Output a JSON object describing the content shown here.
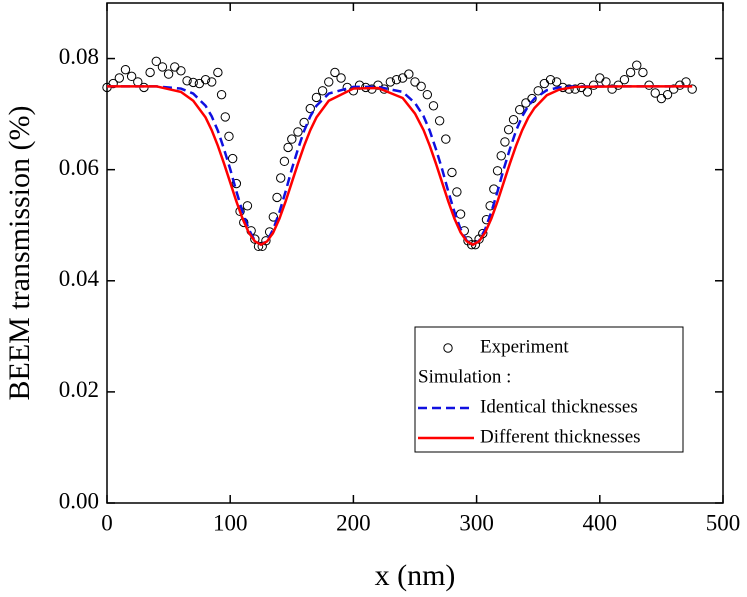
{
  "chart_data": {
    "type": "line",
    "xlabel": "x (nm)",
    "ylabel": "BEEM transmission (%)",
    "xlim": [
      0,
      500
    ],
    "xticks": [
      0,
      100,
      200,
      300,
      400,
      500
    ],
    "ylim": [
      0,
      0.09
    ],
    "yticks": [
      {
        "value": 0,
        "label": "0.00"
      },
      0.02,
      0.04,
      0.06,
      0.08
    ],
    "legend_title": "Simulation :",
    "series": [
      {
        "name": "Experiment",
        "type": "scatter",
        "color": "#000000",
        "x": [
          0,
          5,
          10,
          15,
          20,
          25,
          30,
          35,
          40,
          45,
          50,
          55,
          60,
          65,
          70,
          75,
          80,
          85,
          90,
          93,
          96,
          99,
          102,
          105,
          108,
          111,
          114,
          117,
          120,
          123,
          126,
          129,
          132,
          135,
          138,
          141,
          144,
          147,
          150,
          155,
          160,
          165,
          170,
          175,
          180,
          185,
          190,
          195,
          200,
          205,
          210,
          215,
          220,
          225,
          230,
          235,
          240,
          245,
          250,
          255,
          260,
          265,
          270,
          275,
          280,
          284,
          287,
          290,
          293,
          296,
          299,
          302,
          305,
          308,
          311,
          314,
          317,
          320,
          323,
          326,
          330,
          335,
          340,
          345,
          350,
          355,
          360,
          365,
          370,
          375,
          380,
          385,
          390,
          395,
          400,
          405,
          410,
          415,
          420,
          425,
          430,
          435,
          440,
          445,
          450,
          455,
          460,
          465,
          470,
          475
        ],
        "values": [
          0.0748,
          0.0755,
          0.0765,
          0.078,
          0.0768,
          0.0758,
          0.0748,
          0.0775,
          0.0795,
          0.0785,
          0.0772,
          0.0785,
          0.0778,
          0.076,
          0.0757,
          0.0755,
          0.0762,
          0.0758,
          0.0775,
          0.0735,
          0.0695,
          0.066,
          0.062,
          0.0575,
          0.0525,
          0.0505,
          0.0535,
          0.049,
          0.0475,
          0.0462,
          0.0462,
          0.0472,
          0.0488,
          0.0515,
          0.055,
          0.0585,
          0.0615,
          0.064,
          0.0655,
          0.0668,
          0.0685,
          0.071,
          0.073,
          0.0742,
          0.0758,
          0.0775,
          0.0765,
          0.0748,
          0.0742,
          0.0752,
          0.0748,
          0.0745,
          0.0752,
          0.0745,
          0.0758,
          0.0762,
          0.0765,
          0.0772,
          0.0758,
          0.075,
          0.0735,
          0.0715,
          0.0688,
          0.0655,
          0.0595,
          0.056,
          0.052,
          0.049,
          0.0472,
          0.0465,
          0.0465,
          0.0475,
          0.0485,
          0.051,
          0.0535,
          0.0565,
          0.0598,
          0.0625,
          0.065,
          0.0672,
          0.069,
          0.0708,
          0.072,
          0.0728,
          0.0742,
          0.0755,
          0.0762,
          0.0758,
          0.0748,
          0.0745,
          0.0745,
          0.0748,
          0.074,
          0.0752,
          0.0765,
          0.0758,
          0.0745,
          0.0752,
          0.0762,
          0.0775,
          0.0788,
          0.0775,
          0.0752,
          0.0738,
          0.0728,
          0.0735,
          0.0745,
          0.0752,
          0.0758,
          0.0745
        ]
      },
      {
        "name": "Identical thicknesses",
        "type": "line",
        "dashed": true,
        "color": "#1010e0",
        "x": [
          0,
          20,
          40,
          60,
          70,
          80,
          85,
          90,
          95,
          100,
          105,
          110,
          115,
          120,
          125,
          130,
          135,
          140,
          145,
          150,
          155,
          160,
          165,
          170,
          180,
          200,
          220,
          240,
          250,
          257,
          262,
          267,
          272,
          277,
          282,
          287,
          292,
          297,
          302,
          307,
          312,
          317,
          322,
          327,
          332,
          337,
          342,
          347,
          357,
          367,
          380,
          420,
          475
        ],
        "values": [
          0.075,
          0.075,
          0.075,
          0.0746,
          0.0737,
          0.0715,
          0.0696,
          0.067,
          0.0637,
          0.0601,
          0.0561,
          0.0524,
          0.0493,
          0.0472,
          0.0465,
          0.0472,
          0.0493,
          0.0524,
          0.0561,
          0.0601,
          0.0637,
          0.067,
          0.0696,
          0.0715,
          0.0737,
          0.0749,
          0.0749,
          0.074,
          0.072,
          0.0696,
          0.067,
          0.0637,
          0.0601,
          0.0561,
          0.0524,
          0.0493,
          0.0472,
          0.0465,
          0.0472,
          0.0493,
          0.0524,
          0.0561,
          0.0601,
          0.0637,
          0.067,
          0.0696,
          0.0715,
          0.0728,
          0.0743,
          0.0748,
          0.075,
          0.075,
          0.075
        ]
      },
      {
        "name": "Different thicknesses",
        "type": "line",
        "dashed": false,
        "color": "#ff0000",
        "x": [
          0,
          20,
          40,
          60,
          70,
          80,
          85,
          90,
          95,
          100,
          105,
          110,
          115,
          120,
          125,
          130,
          135,
          140,
          145,
          150,
          155,
          160,
          165,
          170,
          180,
          200,
          220,
          240,
          250,
          257,
          262,
          267,
          272,
          277,
          282,
          287,
          292,
          297,
          302,
          307,
          312,
          317,
          322,
          327,
          332,
          337,
          342,
          347,
          357,
          367,
          380,
          420,
          475
        ],
        "values": [
          0.075,
          0.075,
          0.075,
          0.074,
          0.0724,
          0.0694,
          0.0671,
          0.0643,
          0.0611,
          0.0577,
          0.0543,
          0.0512,
          0.0487,
          0.0471,
          0.0465,
          0.0471,
          0.0487,
          0.0512,
          0.0543,
          0.0577,
          0.0611,
          0.0643,
          0.0671,
          0.0694,
          0.0724,
          0.0746,
          0.0747,
          0.0729,
          0.0701,
          0.0671,
          0.0643,
          0.0611,
          0.0577,
          0.0543,
          0.0512,
          0.0487,
          0.0471,
          0.0465,
          0.0471,
          0.0487,
          0.0512,
          0.0543,
          0.0577,
          0.0611,
          0.0643,
          0.0671,
          0.0694,
          0.0711,
          0.0734,
          0.0744,
          0.0749,
          0.075,
          0.075
        ]
      }
    ]
  }
}
